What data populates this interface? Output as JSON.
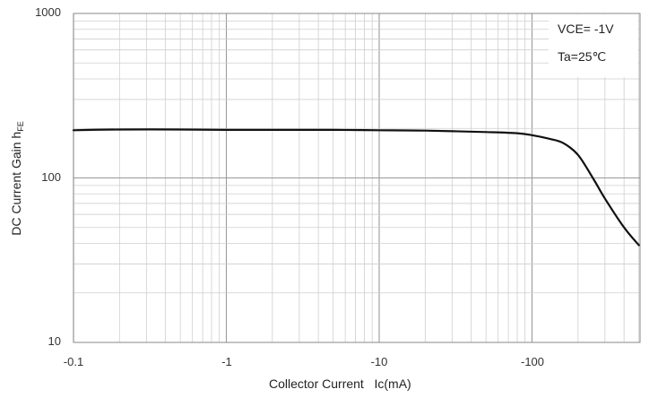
{
  "chart_data": {
    "type": "line",
    "title": "",
    "xlabel": "Collector Current   Ic(mA)",
    "ylabel_main": "DC Current Gain  h",
    "ylabel_sub": "FE",
    "x_scale": "log",
    "y_scale": "log",
    "x_ticks": [
      "-0.1",
      "-1",
      "-10",
      "-100"
    ],
    "y_ticks": [
      "1000",
      "100",
      "10"
    ],
    "xlim": [
      0.1,
      500
    ],
    "ylim": [
      10,
      1000
    ],
    "grid": true,
    "annotations": [
      "VCE= -1V",
      "Ta=25℃"
    ],
    "series": [
      {
        "x": [
          0.1,
          0.2,
          0.5,
          1,
          2,
          5,
          10,
          20,
          50,
          80,
          100,
          130,
          160,
          200,
          250,
          300,
          400,
          500
        ],
        "y": [
          195,
          197,
          197,
          196,
          196,
          196,
          195,
          194,
          190,
          187,
          182,
          173,
          163,
          138,
          100,
          75,
          50,
          39
        ]
      }
    ]
  }
}
